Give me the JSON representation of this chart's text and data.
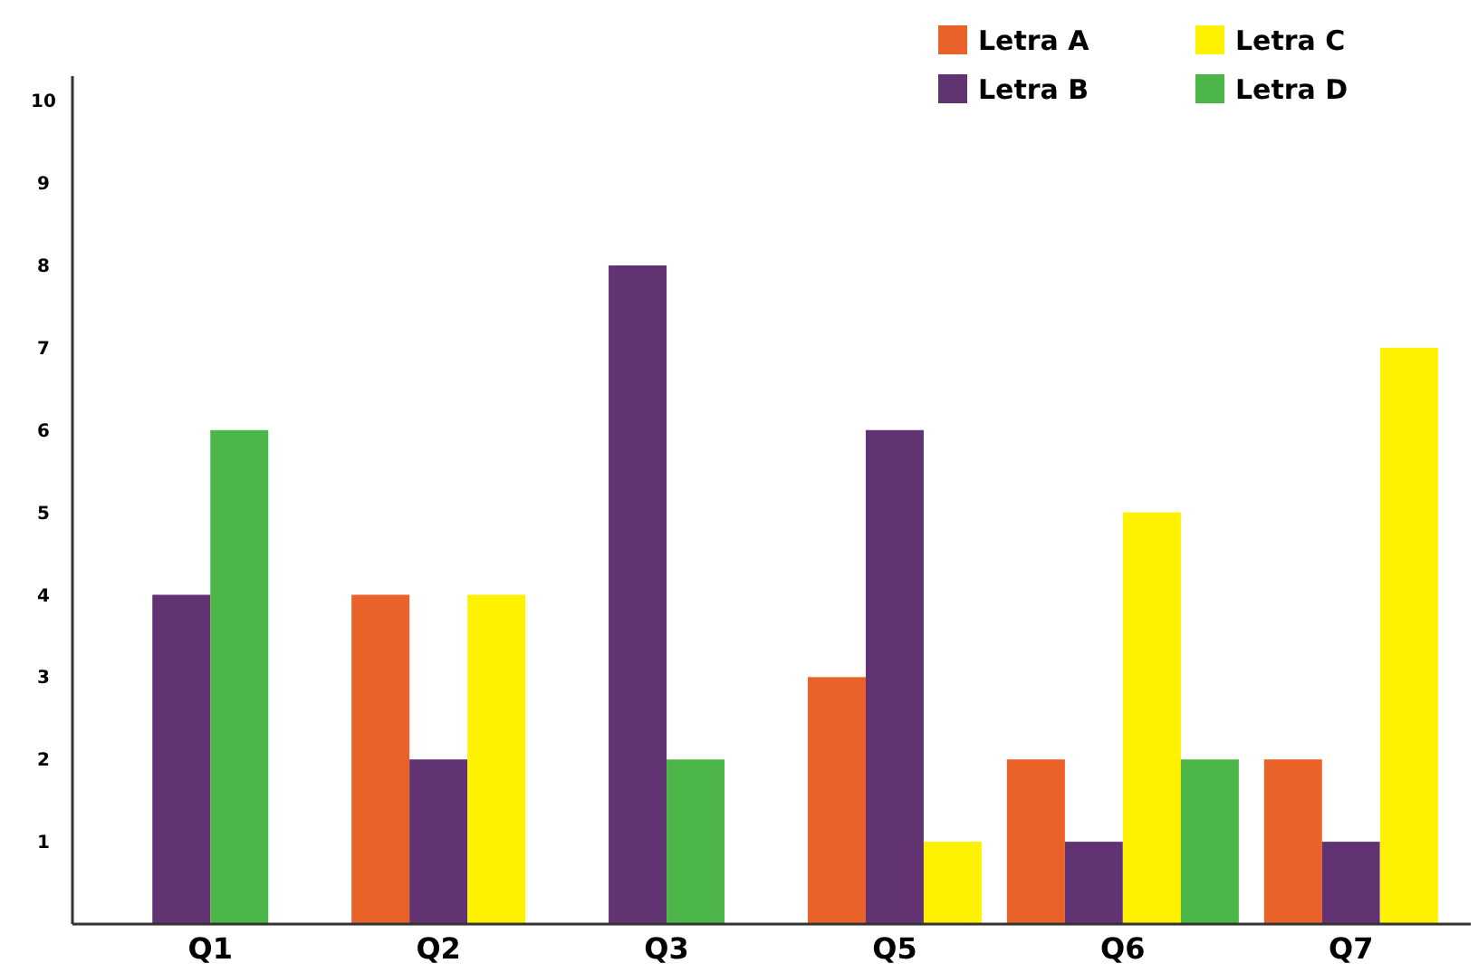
{
  "chart_data": {
    "type": "bar",
    "categories": [
      "Q1",
      "Q2",
      "Q3",
      "Q5",
      "Q6",
      "Q7"
    ],
    "series": [
      {
        "name": "Letra A",
        "color": "#e8622a",
        "values": [
          null,
          4,
          null,
          3,
          2,
          2
        ]
      },
      {
        "name": "Letra B",
        "color": "#623372",
        "values": [
          4,
          2,
          8,
          6,
          1,
          1
        ]
      },
      {
        "name": "Letra C",
        "color": "#fff200",
        "values": [
          null,
          4,
          null,
          1,
          5,
          7
        ]
      },
      {
        "name": "Letra D",
        "color": "#4cb748",
        "values": [
          6,
          null,
          2,
          null,
          2,
          null
        ]
      }
    ],
    "ylim": [
      0,
      10.3
    ],
    "yticks": [
      1,
      2,
      3,
      4,
      5,
      6,
      7,
      8,
      9,
      10
    ],
    "grid": false,
    "legend": "top right"
  }
}
